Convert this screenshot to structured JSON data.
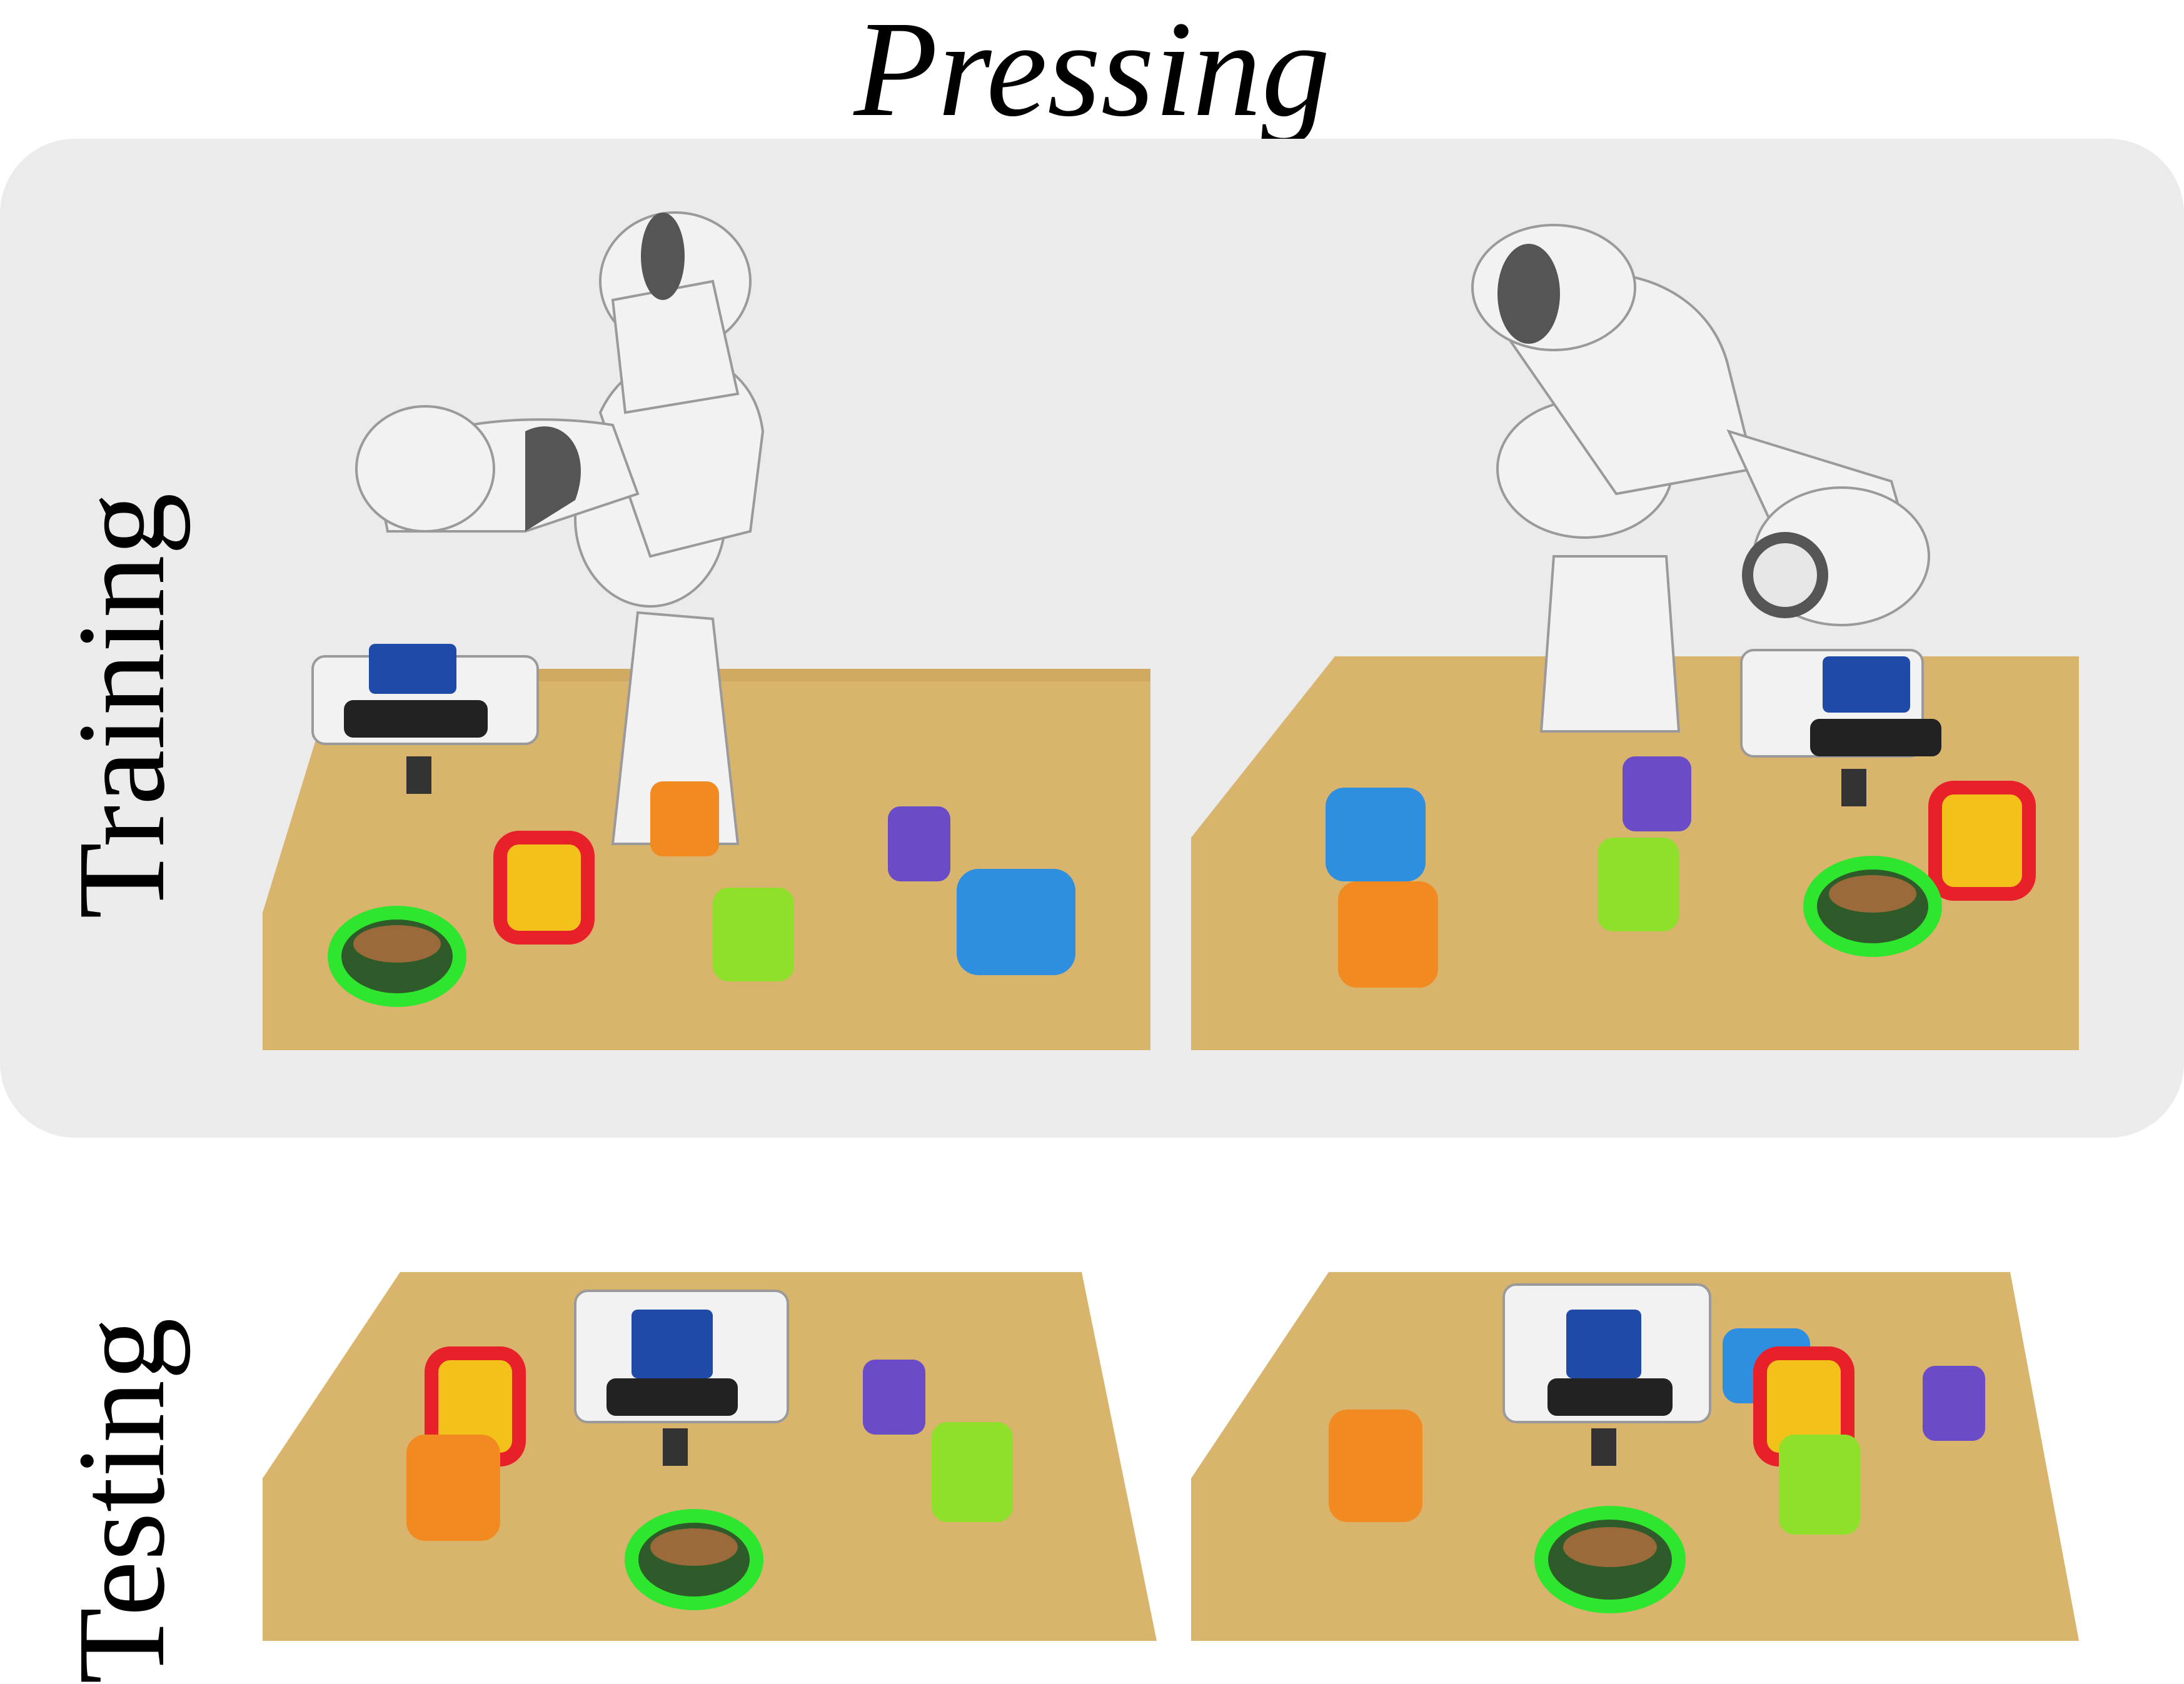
{
  "title": "Pressing",
  "rows": {
    "training_label": "Training",
    "testing_label": "Testing"
  },
  "colors": {
    "panel_background": "#ebebeb",
    "target_outline": "#2ee62e",
    "distractor_outline": "#e8202a",
    "table": "#d9b46c"
  }
}
